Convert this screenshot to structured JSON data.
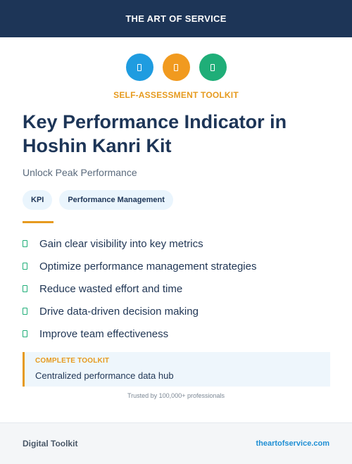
{
  "header": {
    "brand": "THE ART OF SERVICE"
  },
  "icons": [
    {
      "name": "document-icon",
      "color": "#1f9ce0"
    },
    {
      "name": "document-icon",
      "color": "#f19a1f"
    },
    {
      "name": "document-icon",
      "color": "#1fae78"
    }
  ],
  "eyebrow": "SELF-ASSESSMENT TOOLKIT",
  "title": "Key Performance Indicator in Hoshin Kanri Kit",
  "subtitle": "Unlock Peak Performance",
  "tags": [
    "KPI",
    "Performance Management"
  ],
  "benefits": [
    "Gain clear visibility into key metrics",
    "Optimize performance management strategies",
    "Reduce wasted effort and time",
    "Drive data-driven decision making",
    "Improve team effectiveness"
  ],
  "callout": {
    "label": "COMPLETE TOOLKIT",
    "text": "Centralized performance data hub"
  },
  "trust": "Trusted by 100,000+ professionals",
  "footer": {
    "left": "Digital Toolkit",
    "right": "theartofservice.com"
  },
  "colors": {
    "navy": "#1d3557",
    "accent": "#e69a1e",
    "green": "#1fae78",
    "link": "#1f8fd4"
  }
}
